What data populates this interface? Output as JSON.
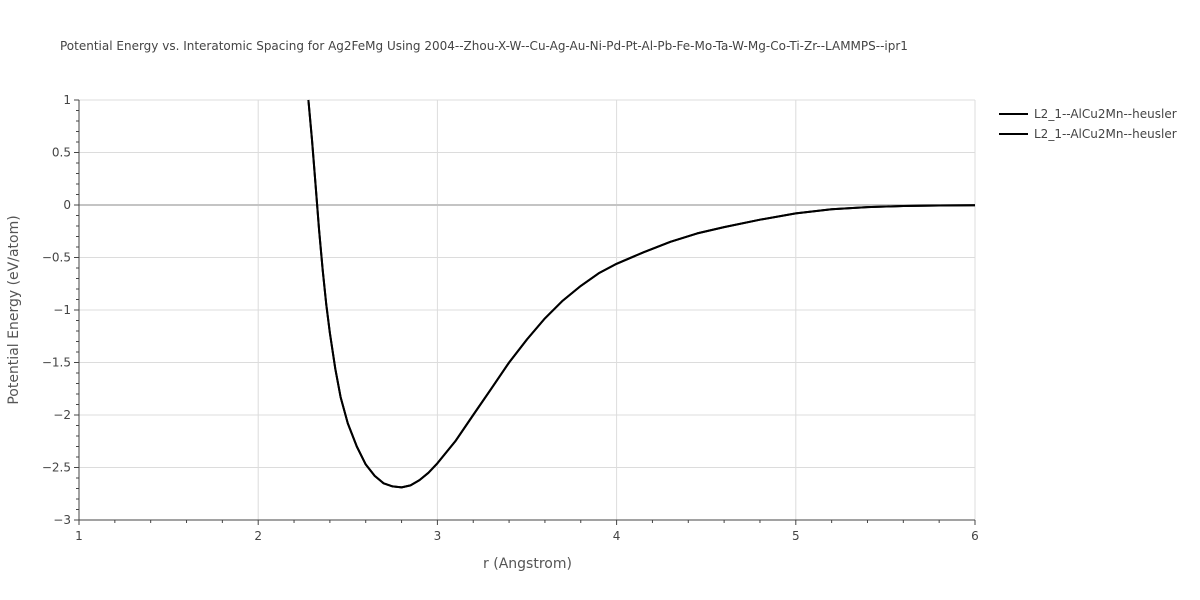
{
  "chart_data": {
    "type": "line",
    "title": "Potential Energy vs. Interatomic Spacing for Ag2FeMg Using 2004--Zhou-X-W--Cu-Ag-Au-Ni-Pd-Pt-Al-Pb-Fe-Mo-Ta-W-Mg-Co-Ti-Zr--LAMMPS--ipr1",
    "xlabel": "r (Angstrom)",
    "ylabel": "Potential Energy (eV/atom)",
    "xlim": [
      1,
      6
    ],
    "ylim": [
      -3,
      1
    ],
    "x_ticks": [
      1,
      2,
      3,
      4,
      5,
      6
    ],
    "x_tick_labels": [
      "1",
      "2",
      "3",
      "4",
      "5",
      "6"
    ],
    "y_ticks": [
      1,
      0.5,
      0,
      -0.5,
      -1,
      -1.5,
      -2,
      -2.5,
      -3
    ],
    "y_tick_labels": [
      "1",
      "0.5",
      "0",
      "−0.5",
      "−1",
      "−1.5",
      "−2",
      "−2.5",
      "−3"
    ],
    "grid": true,
    "legend_position": "top-right",
    "line_color": "#000000",
    "series": [
      {
        "name": "L2_1--AlCu2Mn--heusler",
        "x": [
          2.28,
          2.3,
          2.32,
          2.34,
          2.36,
          2.38,
          2.4,
          2.43,
          2.46,
          2.5,
          2.55,
          2.6,
          2.65,
          2.7,
          2.75,
          2.8,
          2.85,
          2.9,
          2.95,
          3.0,
          3.1,
          3.2,
          3.3,
          3.4,
          3.5,
          3.6,
          3.7,
          3.8,
          3.9,
          4.0,
          4.15,
          4.3,
          4.45,
          4.6,
          4.8,
          5.0,
          5.2,
          5.4,
          5.6,
          5.8,
          6.0
        ],
        "y": [
          1.0,
          0.62,
          0.2,
          -0.24,
          -0.62,
          -0.95,
          -1.22,
          -1.56,
          -1.83,
          -2.08,
          -2.3,
          -2.47,
          -2.58,
          -2.65,
          -2.68,
          -2.69,
          -2.67,
          -2.62,
          -2.55,
          -2.46,
          -2.25,
          -2.0,
          -1.75,
          -1.5,
          -1.28,
          -1.08,
          -0.91,
          -0.77,
          -0.65,
          -0.56,
          -0.45,
          -0.35,
          -0.27,
          -0.21,
          -0.14,
          -0.08,
          -0.04,
          -0.02,
          -0.01,
          -0.005,
          -0.002
        ]
      },
      {
        "name": "L2_1--AlCu2Mn--heusler",
        "x": [
          2.28,
          2.3,
          2.32,
          2.34,
          2.36,
          2.38,
          2.4,
          2.43,
          2.46,
          2.5,
          2.55,
          2.6,
          2.65,
          2.7,
          2.75,
          2.8,
          2.85,
          2.9,
          2.95,
          3.0,
          3.1,
          3.2,
          3.3,
          3.4,
          3.5,
          3.6,
          3.7,
          3.8,
          3.9,
          4.0,
          4.15,
          4.3,
          4.45,
          4.6,
          4.8,
          5.0,
          5.2,
          5.4,
          5.6,
          5.8,
          6.0
        ],
        "y": [
          1.0,
          0.62,
          0.2,
          -0.24,
          -0.62,
          -0.95,
          -1.22,
          -1.56,
          -1.83,
          -2.08,
          -2.3,
          -2.47,
          -2.58,
          -2.65,
          -2.68,
          -2.69,
          -2.67,
          -2.62,
          -2.55,
          -2.46,
          -2.25,
          -2.0,
          -1.75,
          -1.5,
          -1.28,
          -1.08,
          -0.91,
          -0.77,
          -0.65,
          -0.56,
          -0.45,
          -0.35,
          -0.27,
          -0.21,
          -0.14,
          -0.08,
          -0.04,
          -0.02,
          -0.01,
          -0.005,
          -0.002
        ]
      }
    ]
  }
}
